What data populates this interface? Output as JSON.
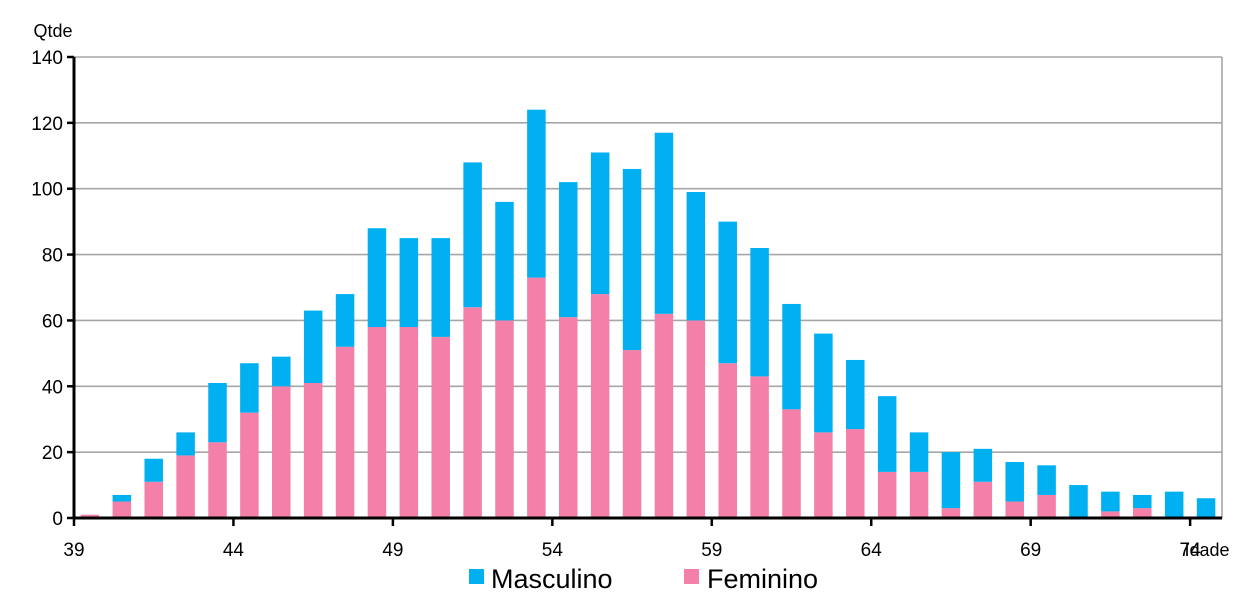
{
  "chart_data": {
    "type": "bar",
    "stacked": true,
    "xlabel": "Idade",
    "ylabel": "Qtde",
    "ylim": [
      0,
      140
    ],
    "yticks": [
      "0",
      "20",
      "40",
      "60",
      "80",
      "100",
      "120",
      "140"
    ],
    "xticks": [
      "39",
      "44",
      "49",
      "54",
      "59",
      "64",
      "69",
      "74"
    ],
    "x": [
      39,
      40,
      41,
      42,
      43,
      44,
      45,
      46,
      47,
      48,
      49,
      50,
      51,
      52,
      53,
      54,
      55,
      56,
      57,
      58,
      59,
      60,
      61,
      62,
      63,
      64,
      65,
      66,
      67,
      68,
      69,
      70,
      71,
      72,
      73,
      74
    ],
    "grid": true,
    "legend_position": "bottom",
    "series": [
      {
        "name": "Feminino",
        "color": "#F47FA8",
        "values": [
          1,
          5,
          11,
          19,
          23,
          32,
          40,
          41,
          52,
          58,
          58,
          55,
          64,
          60,
          73,
          61,
          68,
          51,
          62,
          60,
          47,
          43,
          33,
          26,
          27,
          14,
          14,
          3,
          11,
          5,
          7,
          0,
          2,
          3,
          0,
          0
        ]
      },
      {
        "name": "Masculino",
        "color": "#00B0F0",
        "values": [
          0,
          2,
          7,
          7,
          18,
          15,
          9,
          22,
          16,
          30,
          27,
          30,
          44,
          36,
          51,
          41,
          43,
          55,
          55,
          39,
          43,
          39,
          32,
          30,
          21,
          23,
          12,
          17,
          10,
          12,
          9,
          10,
          6,
          4,
          8,
          6
        ]
      }
    ]
  }
}
